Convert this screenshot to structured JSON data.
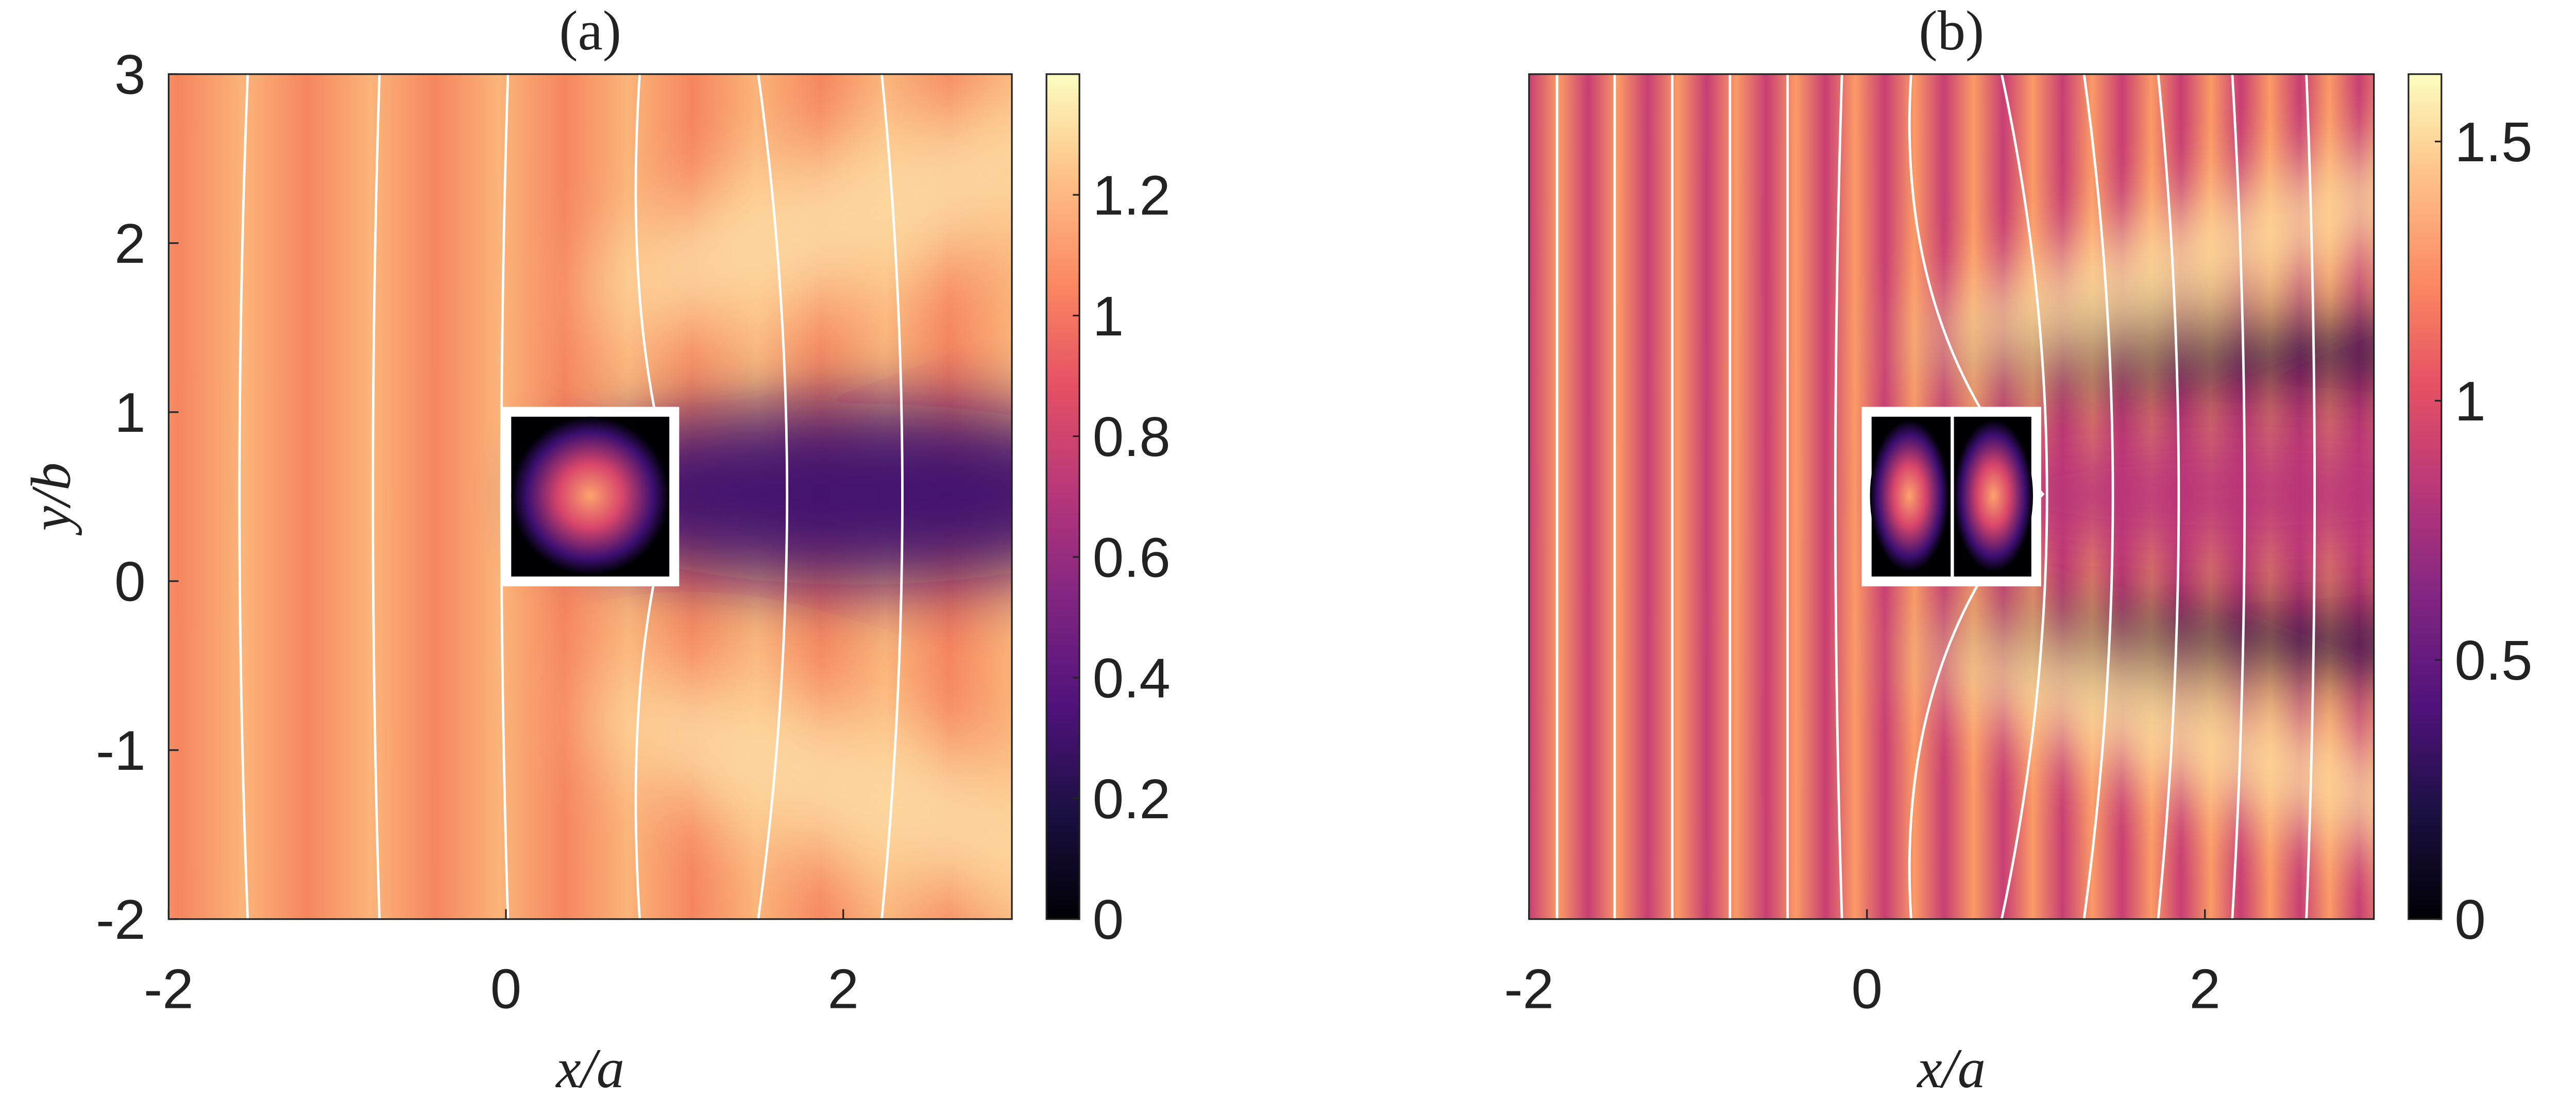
{
  "chart_data": [
    {
      "type": "heatmap",
      "title": "(a)",
      "xlabel": "x/a",
      "ylabel": "y/b",
      "xlim": [
        -2,
        3
      ],
      "ylim": [
        -2,
        3
      ],
      "xticks": [
        -2,
        0,
        2
      ],
      "yticks": [
        -2,
        -1,
        0,
        1,
        2,
        3
      ],
      "colorbar": {
        "clim": [
          0,
          1.4
        ],
        "ticks": [
          0,
          0.2,
          0.4,
          0.6,
          0.8,
          1,
          1.2
        ]
      }
    },
    {
      "type": "heatmap",
      "title": "(b)",
      "xlabel": "x/a",
      "xlim": [
        -2,
        3
      ],
      "ylim": [
        -2,
        3
      ],
      "xticks": [
        -2,
        0,
        2
      ],
      "colorbar": {
        "clim": [
          0,
          1.63
        ],
        "ticks": [
          0,
          0.5,
          1,
          1.5
        ]
      }
    }
  ]
}
